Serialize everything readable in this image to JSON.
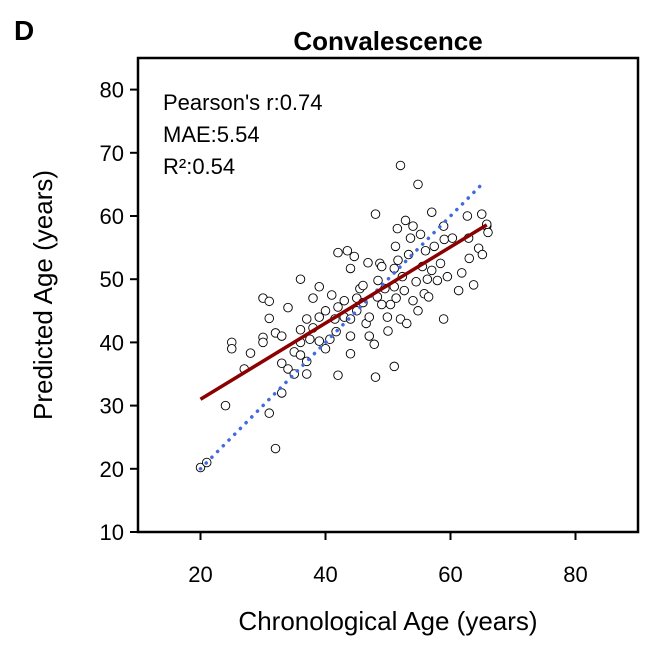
{
  "chart_data": {
    "type": "scatter",
    "panel_label": "D",
    "title": "Convalescence",
    "xlabel": "Chronological Age (years)",
    "ylabel": "Predicted Age (years)",
    "xlim": [
      10,
      90
    ],
    "ylim": [
      10,
      85
    ],
    "xticks": [
      20,
      40,
      60,
      80
    ],
    "yticks": [
      10,
      20,
      30,
      40,
      50,
      60,
      70,
      80
    ],
    "annotations": [
      "Pearson's r:0.74",
      "MAE:5.54",
      "R²:0.54"
    ],
    "point_fill": "#ffffff",
    "point_stroke": "#000000",
    "x": [
      20,
      21,
      24,
      25,
      25,
      27,
      28,
      30,
      30,
      30,
      31,
      31,
      32,
      31,
      32,
      33,
      33,
      33,
      34,
      34,
      35,
      35,
      36,
      36,
      36,
      37,
      37,
      36,
      37,
      37.5,
      38,
      38,
      39,
      39,
      39,
      40,
      40,
      40.7,
      41,
      41.5,
      41.7,
      42,
      42,
      42,
      43,
      43,
      43.5,
      44,
      44,
      44,
      44,
      44.6,
      45,
      45,
      45.5,
      46,
      46,
      46.5,
      46.8,
      47,
      47,
      47.8,
      48,
      48,
      48.3,
      48.4,
      48.7,
      49,
      49,
      49.5,
      49.9,
      50,
      50.4,
      51,
      51,
      51,
      51.2,
      51.3,
      51.5,
      51.6,
      52,
      52,
      52.3,
      52.6,
      52.8,
      53,
      53.3,
      53.6,
      54,
      54,
      54.5,
      54.8,
      54.8,
      55.2,
      55.5,
      55.8,
      56,
      56.3,
      56.5,
      57,
      57,
      57.4,
      57.9,
      58.4,
      58.9,
      58.9,
      59,
      59.5,
      60.3,
      61.3,
      61.8,
      62.7,
      62.9,
      63,
      63.7,
      64.5,
      65,
      65.1,
      65.8,
      66,
      65.8
    ],
    "values": [
      20.2,
      21,
      30,
      40,
      39,
      35.8,
      38.3,
      47,
      40.8,
      40,
      46.5,
      43.8,
      41.5,
      28.8,
      23.2,
      32,
      36.7,
      41,
      45.5,
      35.8,
      35,
      38.5,
      42,
      40,
      38,
      37,
      35,
      50,
      43.7,
      40.5,
      42.3,
      47,
      44,
      48.8,
      40.2,
      39,
      45,
      40.5,
      47.5,
      43.7,
      41.7,
      45.6,
      54.2,
      34.8,
      46.6,
      44,
      54.5,
      51.7,
      43.7,
      38.2,
      41,
      53.6,
      47,
      45,
      48.5,
      49,
      46.3,
      43,
      52.6,
      41,
      44,
      39.7,
      34.5,
      60.3,
      47.2,
      49.8,
      52.5,
      46,
      52,
      48.5,
      44,
      41.8,
      46,
      51.7,
      48.8,
      36.2,
      55.2,
      47,
      58,
      53,
      68,
      43.7,
      50.4,
      48.2,
      59.3,
      43,
      53.9,
      56.5,
      58.4,
      46.6,
      49.6,
      65,
      45,
      57.1,
      52,
      47.7,
      54.5,
      50,
      47.2,
      60.6,
      51.4,
      55.2,
      49.8,
      52.5,
      43.7,
      58.4,
      56.3,
      50.4,
      56.5,
      48.2,
      51,
      60,
      56.5,
      53.3,
      49.1,
      54.9,
      60.3,
      53.9,
      58.4,
      57.4,
      58.7
    ],
    "lines": [
      {
        "x": [
          20,
          65.5
        ],
        "values": [
          20,
          65.5
        ],
        "color": "#4169e1",
        "style": "dotted"
      },
      {
        "x": [
          20,
          65.8
        ],
        "values": [
          31,
          58.6
        ],
        "color": "#8b0000",
        "style": "solid"
      }
    ]
  }
}
